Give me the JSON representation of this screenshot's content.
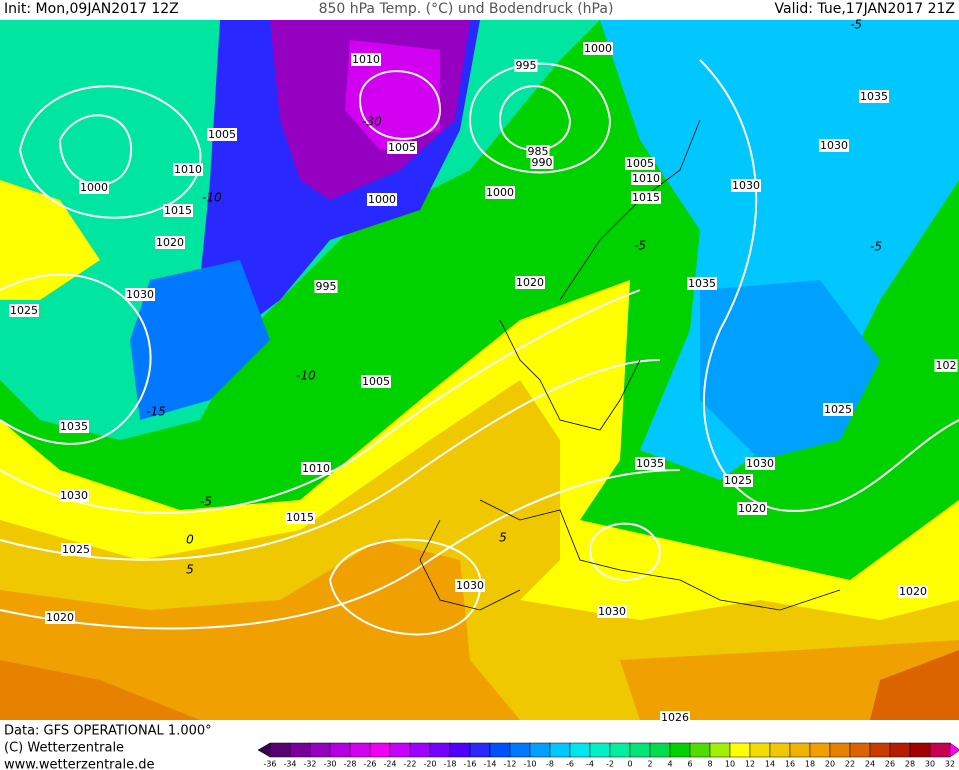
{
  "header": {
    "init": "Init: Mon,09JAN2017 12Z",
    "title": "850 hPa Temp. (°C) und Bodendruck (hPa)",
    "valid": "Valid: Tue,17JAN2017 21Z"
  },
  "map": {
    "isobar_labels": [
      "1010",
      "1005",
      "1010",
      "1015",
      "1020",
      "1030",
      "1025",
      "1035",
      "1030",
      "1025",
      "1020",
      "1000",
      "995",
      "1000",
      "985",
      "990",
      "1005",
      "1010",
      "1015",
      "1000",
      "995",
      "1005",
      "1000",
      "1020",
      "1030",
      "1035",
      "1035",
      "1030",
      "1025",
      "1035",
      "1030",
      "1025",
      "1020",
      "1020",
      "1030",
      "1030",
      "1010",
      "1015",
      "1005",
      "102",
      "1026"
    ],
    "temp_labels": [
      "-30",
      "-15",
      "-10",
      "-10",
      "-5",
      "-5",
      "0",
      "5",
      "5",
      "-5",
      "-5"
    ]
  },
  "footer": {
    "source": "Data: GFS OPERATIONAL 1.000°",
    "copyright": "(C) Wetterzentrale",
    "url": "www.wetterzentrale.de"
  },
  "scale": {
    "labels": [
      -36,
      -34,
      -32,
      -30,
      -28,
      -26,
      -24,
      -22,
      -20,
      -18,
      -16,
      -14,
      -12,
      -10,
      -8,
      -6,
      -4,
      -2,
      0,
      2,
      4,
      6,
      8,
      10,
      12,
      14,
      16,
      18,
      20,
      22,
      24,
      26,
      28,
      30,
      32
    ],
    "colors": [
      "#3c0050",
      "#5a0070",
      "#78009a",
      "#9600c0",
      "#b400e0",
      "#d200f0",
      "#f000f0",
      "#c800ff",
      "#a000ff",
      "#7800ff",
      "#5000ff",
      "#2828ff",
      "#0050ff",
      "#0078ff",
      "#00a0ff",
      "#00c8ff",
      "#00e6f0",
      "#00f0c8",
      "#00f0a0",
      "#00e678",
      "#00dc50",
      "#00d200",
      "#50dc00",
      "#a0f000",
      "#ffff00",
      "#f0dc00",
      "#f0c800",
      "#f0b400",
      "#f0a000",
      "#e68200",
      "#dc6400",
      "#c83c00",
      "#b41e00",
      "#a00000",
      "#c80050",
      "#ff00ff"
    ]
  }
}
